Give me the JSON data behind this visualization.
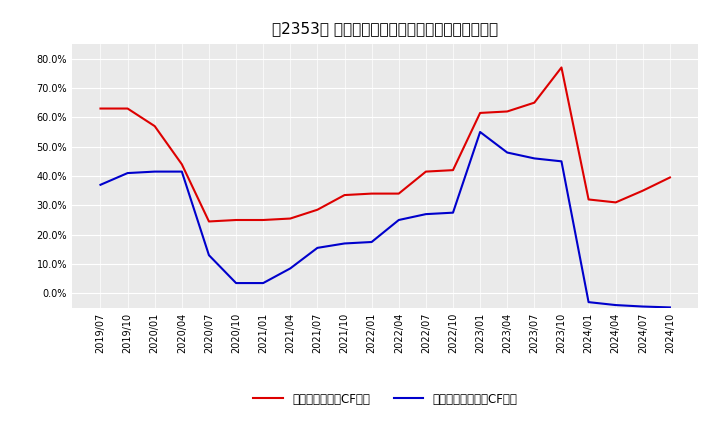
{
  "title": "［2353］ 有利子負債キャッシュフロー比率の推移",
  "x_labels": [
    "2019/07",
    "2019/10",
    "2020/01",
    "2020/04",
    "2020/07",
    "2020/10",
    "2021/01",
    "2021/04",
    "2021/07",
    "2021/10",
    "2022/01",
    "2022/04",
    "2022/07",
    "2022/10",
    "2023/01",
    "2023/04",
    "2023/07",
    "2023/10",
    "2024/01",
    "2024/04",
    "2024/07",
    "2024/10"
  ],
  "red_series": [
    0.63,
    0.63,
    0.57,
    0.44,
    0.245,
    0.25,
    0.25,
    0.255,
    0.285,
    0.335,
    0.34,
    0.34,
    0.415,
    0.42,
    0.615,
    0.62,
    0.65,
    0.77,
    0.32,
    0.31,
    0.35,
    0.395
  ],
  "blue_series": [
    0.37,
    0.41,
    0.415,
    0.415,
    0.13,
    0.035,
    0.035,
    0.085,
    0.155,
    0.17,
    0.175,
    0.25,
    0.27,
    0.275,
    0.55,
    0.48,
    0.46,
    0.45,
    -0.03,
    -0.04,
    -0.045,
    -0.048
  ],
  "red_label": "有利子負債営業CF比率",
  "blue_label": "有利子負債フリーCF比率",
  "ylim_min": -0.05,
  "ylim_max": 0.85,
  "yticks": [
    0.0,
    0.1,
    0.2,
    0.3,
    0.4,
    0.5,
    0.6,
    0.7,
    0.8
  ],
  "background_color": "#ffffff",
  "plot_bg_color": "#eaeaea",
  "grid_color": "#ffffff",
  "red_color": "#dd0000",
  "blue_color": "#0000cc",
  "title_fontsize": 11,
  "legend_fontsize": 8.5,
  "tick_fontsize": 7
}
